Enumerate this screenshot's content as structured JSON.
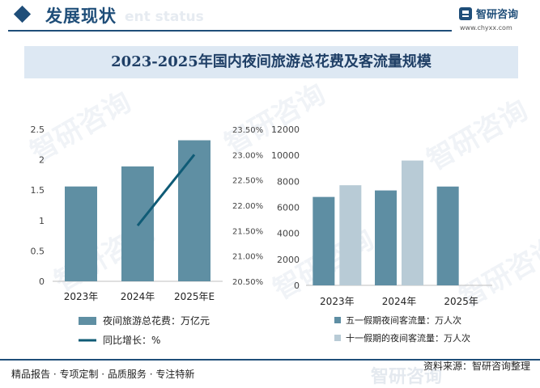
{
  "header": {
    "title": "发展现状",
    "ghost_text": "ent status",
    "logo_name": "智研咨询",
    "logo_url": "www.chyxx.com"
  },
  "main_title": "2023-2025年国内夜间旅游总花费及客流量规模",
  "watermark_text": "智研咨询",
  "footer": {
    "left": "精品报告 · 专项定制 · 品质服务 · 专注特新",
    "right": "资料来源：智研咨询整理",
    "ghost_text": "智研咨询"
  },
  "colors": {
    "brand": "#1f4e79",
    "bar_spend": "#5f8fa3",
    "line_growth": "#0f5b76",
    "bar_may": "#5e8ea3",
    "bar_oct": "#b8cbd6",
    "title_band": "#dde8f3"
  },
  "chart_data": [
    {
      "type": "bar",
      "categories": [
        "2023年",
        "2024年",
        "2025年E"
      ],
      "series": [
        {
          "name": "夜间旅游总花费：万亿元",
          "values": [
            1.56,
            1.89,
            2.32
          ],
          "axis": "left"
        },
        {
          "name": "同比增长：%",
          "type": "line",
          "values": [
            null,
            21.6,
            23.0
          ],
          "axis": "right"
        }
      ],
      "ylim_left": [
        0,
        2.5
      ],
      "yticks_left": [
        "0",
        "0.5",
        "1",
        "1.5",
        "2",
        "2.5"
      ],
      "ylim_right": [
        20.5,
        23.5
      ],
      "yticks_right": [
        "20.50%",
        "21.00%",
        "21.50%",
        "22.00%",
        "22.50%",
        "23.00%",
        "23.50%"
      ],
      "legend_position": "bottom-left"
    },
    {
      "type": "bar",
      "categories": [
        "2023年",
        "2024年",
        "2025年"
      ],
      "series": [
        {
          "name": "五一假期夜间客流量：万人次",
          "values": [
            6800,
            7300,
            7600
          ]
        },
        {
          "name": "十一假期的夜间客流量：万人次",
          "values": [
            7700,
            9600,
            null
          ]
        }
      ],
      "ylim": [
        0,
        12000
      ],
      "yticks": [
        "0",
        "2000",
        "4000",
        "6000",
        "8000",
        "10000",
        "12000"
      ],
      "legend_position": "bottom-right"
    }
  ]
}
